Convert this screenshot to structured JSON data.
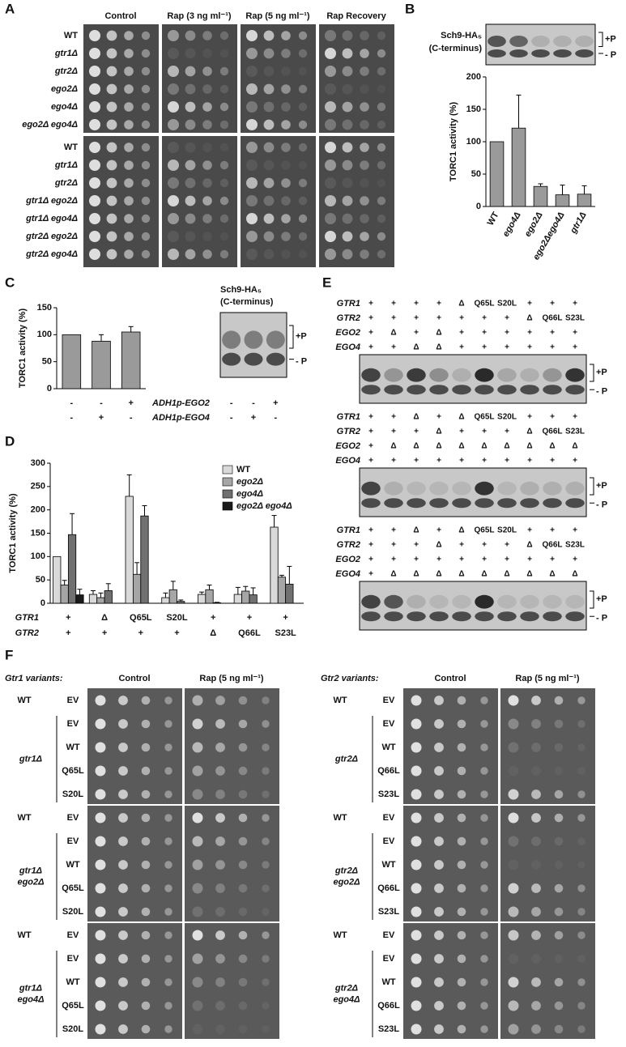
{
  "panel_labels": {
    "a": "A",
    "b": "B",
    "c": "C",
    "d": "D",
    "e": "E",
    "f": "F"
  },
  "panel_a": {
    "columns": [
      "Control",
      "Rap (3 ng ml⁻¹)",
      "Rap (5 ng ml⁻¹)",
      "Rap Recovery"
    ],
    "strains_top": [
      "WT",
      "gtr1Δ",
      "gtr2Δ",
      "ego2Δ",
      "ego4Δ",
      "ego2Δ ego4Δ"
    ],
    "strains_bottom": [
      "WT",
      "gtr1Δ",
      "gtr2Δ",
      "gtr1Δ ego2Δ",
      "gtr1Δ ego4Δ",
      "gtr2Δ ego2Δ",
      "gtr2Δ ego4Δ"
    ]
  },
  "panel_b_blot": {
    "protein": "Sch9-HA₅",
    "region": "(C-terminus)",
    "upper_band": "+P",
    "lower_band": "- P"
  },
  "panel_c_blot": {
    "protein": "Sch9-HA₅",
    "region": "(C-terminus)",
    "upper_band": "+P",
    "lower_band": "- P",
    "lanes": [
      [
        "-",
        "-",
        "+"
      ],
      [
        "-",
        "+",
        "-"
      ]
    ]
  },
  "chart_data": [
    {
      "type": "bar",
      "ylabel": "TORC1 activity (%)",
      "categories": [
        "WT",
        "ego4Δ",
        "ego2Δ",
        "ego2Δego4Δ",
        "gtr1Δ"
      ],
      "values": [
        100,
        121,
        31,
        18,
        19
      ],
      "errors": [
        null,
        51,
        4,
        15,
        13
      ],
      "color": "#9a9a9a",
      "ylim": [
        0,
        200
      ],
      "yticks": [
        0,
        50,
        100,
        150,
        200
      ]
    },
    {
      "type": "bar",
      "ylabel": "TORC1 activity (%)",
      "values": [
        100,
        88,
        105
      ],
      "errors": [
        null,
        12,
        10
      ],
      "color": "#9a9a9a",
      "ylim": [
        0,
        150
      ],
      "yticks": [
        0,
        50,
        100,
        150
      ],
      "conditions": [
        {
          "name": "ADH1p-EGO2",
          "values": [
            "-",
            "-",
            "+"
          ]
        },
        {
          "name": "ADH1p-EGO4",
          "values": [
            "-",
            "+",
            "-"
          ]
        }
      ]
    },
    {
      "type": "grouped_bar",
      "ylabel": "TORC1 activity (%)",
      "ylim": [
        0,
        300
      ],
      "yticks": [
        0,
        50,
        100,
        150,
        200,
        250,
        300
      ],
      "legend": "top-right",
      "conditions": [
        {
          "name": "GTR1",
          "values": [
            "+",
            "Δ",
            "Q65L",
            "S20L",
            "+",
            "+",
            "+"
          ]
        },
        {
          "name": "GTR2",
          "values": [
            "+",
            "+",
            "+",
            "+",
            "Δ",
            "Q66L",
            "S23L"
          ]
        }
      ],
      "series": [
        {
          "name": "WT",
          "color": "#d9d9d9",
          "values": [
            100,
            19,
            229,
            12,
            19,
            19,
            163
          ],
          "errors": [
            null,
            8,
            46,
            10,
            5,
            15,
            25
          ]
        },
        {
          "name": "ego2Δ",
          "color": "#a6a6a6",
          "values": [
            39,
            12,
            62,
            29,
            29,
            26,
            56
          ],
          "errors": [
            10,
            10,
            25,
            18,
            10,
            10,
            4
          ]
        },
        {
          "name": "ego4Δ",
          "color": "#707070",
          "values": [
            147,
            27,
            187,
            4,
            1,
            18,
            41
          ],
          "errors": [
            45,
            15,
            22,
            3,
            1,
            15,
            38
          ]
        },
        {
          "name": "ego2Δ ego4Δ",
          "color": "#1a1a1a",
          "values": [
            18,
            null,
            null,
            null,
            null,
            null,
            null
          ],
          "errors": [
            12,
            null,
            null,
            null,
            null,
            null,
            null
          ]
        }
      ]
    }
  ],
  "panel_e": {
    "upper_band": "+P",
    "lower_band": "- P",
    "blots": [
      {
        "rows": [
          {
            "name": "GTR1",
            "lanes": [
              "+",
              "+",
              "+",
              "+",
              "Δ",
              "Q65L",
              "S20L",
              "+",
              "+",
              "+"
            ]
          },
          {
            "name": "GTR2",
            "lanes": [
              "+",
              "+",
              "+",
              "+",
              "+",
              "+",
              "+",
              "Δ",
              "Q66L",
              "S23L"
            ]
          },
          {
            "name": "EGO2",
            "lanes": [
              "+",
              "Δ",
              "+",
              "Δ",
              "+",
              "+",
              "+",
              "+",
              "+",
              "+"
            ]
          },
          {
            "name": "EGO4",
            "lanes": [
              "+",
              "+",
              "Δ",
              "Δ",
              "+",
              "+",
              "+",
              "+",
              "+",
              "+"
            ]
          }
        ]
      },
      {
        "rows": [
          {
            "name": "GTR1",
            "lanes": [
              "+",
              "+",
              "Δ",
              "+",
              "Δ",
              "Q65L",
              "S20L",
              "+",
              "+",
              "+"
            ]
          },
          {
            "name": "GTR2",
            "lanes": [
              "+",
              "+",
              "+",
              "Δ",
              "+",
              "+",
              "+",
              "Δ",
              "Q66L",
              "S23L"
            ]
          },
          {
            "name": "EGO2",
            "lanes": [
              "+",
              "Δ",
              "Δ",
              "Δ",
              "Δ",
              "Δ",
              "Δ",
              "Δ",
              "Δ",
              "Δ"
            ]
          },
          {
            "name": "EGO4",
            "lanes": [
              "+",
              "+",
              "+",
              "+",
              "+",
              "+",
              "+",
              "+",
              "+",
              "+"
            ]
          }
        ]
      },
      {
        "rows": [
          {
            "name": "GTR1",
            "lanes": [
              "+",
              "+",
              "Δ",
              "+",
              "Δ",
              "Q65L",
              "S20L",
              "+",
              "+",
              "+"
            ]
          },
          {
            "name": "GTR2",
            "lanes": [
              "+",
              "+",
              "+",
              "Δ",
              "+",
              "+",
              "+",
              "Δ",
              "Q66L",
              "S23L"
            ]
          },
          {
            "name": "EGO2",
            "lanes": [
              "+",
              "+",
              "+",
              "+",
              "+",
              "+",
              "+",
              "+",
              "+",
              "+"
            ]
          },
          {
            "name": "EGO4",
            "lanes": [
              "+",
              "Δ",
              "Δ",
              "Δ",
              "Δ",
              "Δ",
              "Δ",
              "Δ",
              "Δ",
              "Δ"
            ]
          }
        ]
      }
    ]
  },
  "panel_f": {
    "halves": [
      {
        "title": "Gtr1 variants:",
        "columns": [
          "Control",
          "Rap (5 ng ml⁻¹)"
        ],
        "blocks": [
          {
            "reference": "WT",
            "reference_plasmid": "EV",
            "strain": [
              "gtr1Δ"
            ],
            "plasmids": [
              "EV",
              "WT",
              "Q65L",
              "S20L"
            ]
          },
          {
            "reference": "WT",
            "reference_plasmid": "EV",
            "strain": [
              "gtr1Δ",
              "ego2Δ"
            ],
            "plasmids": [
              "EV",
              "WT",
              "Q65L",
              "S20L"
            ]
          },
          {
            "reference": "WT",
            "reference_plasmid": "EV",
            "strain": [
              "gtr1Δ",
              "ego4Δ"
            ],
            "plasmids": [
              "EV",
              "WT",
              "Q65L",
              "S20L"
            ]
          }
        ]
      },
      {
        "title": "Gtr2 variants:",
        "columns": [
          "Control",
          "Rap (5 ng ml⁻¹)"
        ],
        "blocks": [
          {
            "reference": "WT",
            "reference_plasmid": "EV",
            "strain": [
              "gtr2Δ"
            ],
            "plasmids": [
              "EV",
              "WT",
              "Q66L",
              "S23L"
            ]
          },
          {
            "reference": "WT",
            "reference_plasmid": "EV",
            "strain": [
              "gtr2Δ",
              "ego2Δ"
            ],
            "plasmids": [
              "EV",
              "WT",
              "Q66L",
              "S23L"
            ]
          },
          {
            "reference": "WT",
            "reference_plasmid": "EV",
            "strain": [
              "gtr2Δ",
              "ego4Δ"
            ],
            "plasmids": [
              "EV",
              "WT",
              "Q66L",
              "S23L"
            ]
          }
        ]
      }
    ]
  }
}
